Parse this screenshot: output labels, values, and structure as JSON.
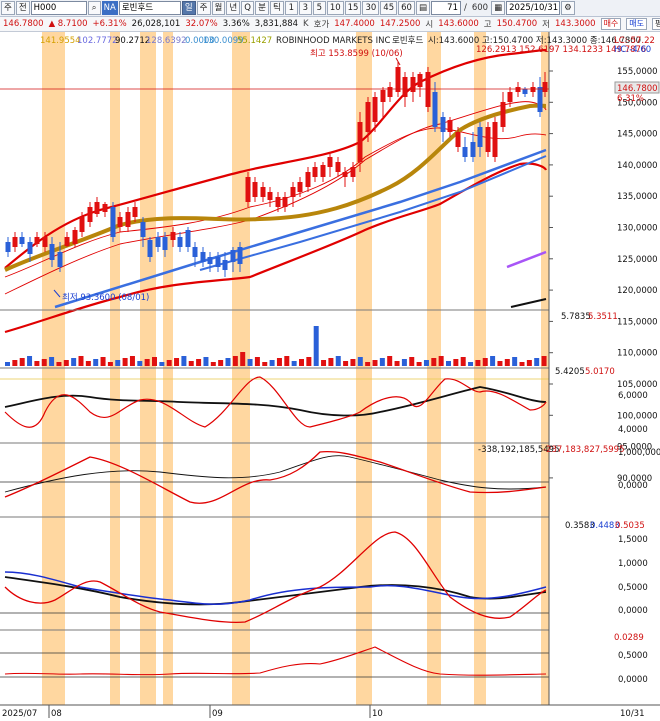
{
  "toolbar": {
    "buttons": [
      "주",
      "전"
    ],
    "code": "H000",
    "search_icon": "search-icon",
    "market_tag": "NA",
    "name": "로빈후드",
    "periods": [
      "일",
      "주",
      "월",
      "년",
      "Q",
      "분",
      "틱"
    ],
    "minutes": [
      "1",
      "3",
      "5",
      "10",
      "15",
      "30",
      "45",
      "60"
    ],
    "count": "71",
    "total": "600",
    "date": "2025/10/31"
  },
  "quote": {
    "price": "146.7800",
    "change": "▲ 8.7100",
    "pct": "+6.31%",
    "volume": "26,028,101",
    "ratio": "32.07%",
    "turnover": "3.36%",
    "amount": "3,831,884",
    "amount_unit": "K",
    "ask_label": "호가",
    "ask": "147.4000",
    "bid": "147.2500",
    "open_label": "시",
    "open": "143.6000",
    "high_label": "고",
    "high": "150.4700",
    "low_label": "저",
    "low": "143.3000",
    "buy": "매수",
    "sell": "매도",
    "eval": "평"
  },
  "legend": {
    "v1": "141.9554",
    "v2": "102.7772",
    "v3": "90.2712",
    "v4": "128.6392",
    "v5": "0.0000",
    "v6": "130.0099",
    "v7": "55.1427",
    "company": "ROBINHOOD MARKETS INC",
    "kname": "로빈후드",
    "ohlc": "시:143.6000  고:150.4700  저:143.3000  종:146.7800",
    "line2": "126.2913  152.6197  134.1233  149.7876",
    "lc": "LC:-57.22",
    "hc": "HC:-4.60"
  },
  "annotations": {
    "high": "최고 153.8599 (10/06)",
    "low": "최저 93.3600 (08/01)"
  },
  "price_axis": [
    "155,0000",
    "150,0000",
    "145,0000",
    "140,0000",
    "135,0000",
    "130,0000",
    "125,0000",
    "120,0000",
    "115,0000",
    "110,0000",
    "105,0000",
    "100,0000",
    "95,0000",
    "90,0000"
  ],
  "current_tag": "146.7800",
  "current_pct": "6.31%",
  "panes": {
    "volume": {
      "v1": "5.7835",
      "v2": "5.3511"
    },
    "osc1": {
      "v1": "5.4205",
      "v2": "5.0170",
      "ticks": [
        "6,0000",
        "4,0000"
      ]
    },
    "osc2": {
      "v1": "-338,192,185,5495",
      "v2": "-237,183,827,5995",
      "ticks": [
        "1,000,000",
        "0,0000"
      ]
    },
    "osc3": {
      "v1": "0.3583",
      "v2": "0.4483",
      "v3": "0.5035",
      "ticks": [
        "1,5000",
        "1,0000",
        "0,5000",
        "0,0000"
      ]
    },
    "osc4": {
      "v1": "0.0289",
      "ticks": [
        "0,5000",
        "0,0000"
      ]
    }
  },
  "time_axis": [
    "2025/07",
    "08",
    "09",
    "10",
    "10/31"
  ],
  "colors": {
    "up": "#e01010",
    "down": "#2a60d8",
    "highlight": "#ffd7a0",
    "ma": "#b8860b",
    "band": "#e00000",
    "trend": "#3a6fe0"
  }
}
